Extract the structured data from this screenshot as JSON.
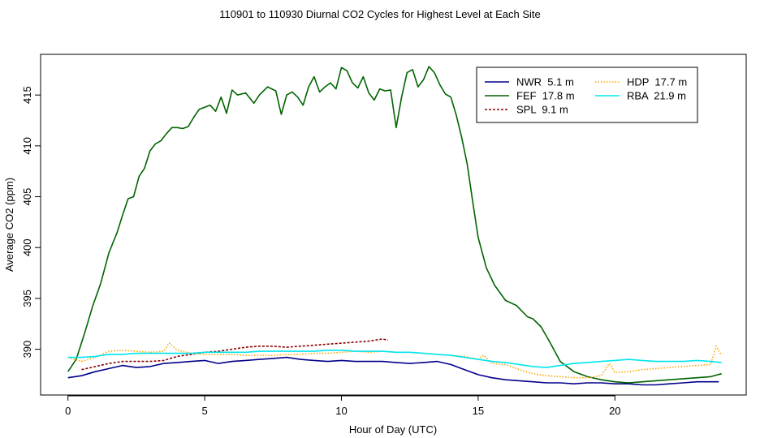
{
  "chart_data": {
    "type": "line",
    "title": "110901  to  110930 Diurnal CO2 Cycles for Highest Level at Each Site",
    "xlabel": "Hour of Day (UTC)",
    "ylabel": "Average CO2 (ppm)",
    "xlim": [
      -1,
      24.8
    ],
    "ylim": [
      385.5,
      419.0
    ],
    "xticks": [
      0,
      5,
      10,
      15,
      20
    ],
    "yticks": [
      390,
      395,
      400,
      405,
      410,
      415
    ],
    "legend_position": "top-right",
    "grid": false,
    "series": [
      {
        "name": "NWR  5.1 m",
        "color": "#00008b",
        "dash": "solid",
        "x": [
          0,
          0.5,
          1,
          1.5,
          2,
          2.5,
          3,
          3.5,
          4,
          4.5,
          5,
          5.5,
          6,
          6.5,
          7,
          7.5,
          8,
          8.5,
          9,
          9.5,
          10,
          10.5,
          11,
          11.5,
          12,
          12.5,
          13,
          13.5,
          14,
          14.5,
          15,
          15.5,
          16,
          16.5,
          17,
          17.5,
          18,
          18.5,
          19,
          19.5,
          20,
          20.5,
          21,
          21.5,
          22,
          22.5,
          23,
          23.5,
          23.8
        ],
        "y": [
          387.2,
          387.4,
          387.8,
          388.1,
          388.4,
          388.2,
          388.3,
          388.6,
          388.7,
          388.8,
          388.9,
          388.6,
          388.8,
          388.9,
          389.0,
          389.1,
          389.2,
          389.0,
          388.9,
          388.8,
          388.9,
          388.8,
          388.8,
          388.8,
          388.7,
          388.6,
          388.7,
          388.8,
          388.5,
          388.0,
          387.5,
          387.2,
          387.0,
          386.9,
          386.8,
          386.7,
          386.7,
          386.6,
          386.7,
          386.7,
          386.6,
          386.6,
          386.5,
          386.5,
          386.6,
          386.7,
          386.8,
          386.8,
          386.8
        ]
      },
      {
        "name": "FEF  17.8 m",
        "color": "#006400",
        "dash": "solid",
        "x": [
          0,
          0.3,
          0.6,
          0.9,
          1.2,
          1.5,
          1.8,
          2.0,
          2.2,
          2.4,
          2.6,
          2.8,
          3.0,
          3.2,
          3.4,
          3.6,
          3.8,
          4.0,
          4.2,
          4.4,
          4.6,
          4.8,
          5.0,
          5.2,
          5.4,
          5.6,
          5.8,
          6.0,
          6.2,
          6.5,
          6.8,
          7.0,
          7.3,
          7.6,
          7.8,
          8.0,
          8.2,
          8.4,
          8.6,
          8.8,
          9.0,
          9.2,
          9.4,
          9.6,
          9.8,
          10.0,
          10.2,
          10.4,
          10.6,
          10.8,
          11.0,
          11.2,
          11.4,
          11.6,
          11.8,
          12.0,
          12.2,
          12.4,
          12.6,
          12.8,
          13.0,
          13.2,
          13.4,
          13.6,
          13.8,
          14.0,
          14.2,
          14.4,
          14.6,
          14.8,
          15.0,
          15.3,
          15.6,
          16.0,
          16.4,
          16.8,
          17.0,
          17.3,
          17.6,
          18.0,
          18.5,
          19.0,
          19.5,
          20.0,
          20.5,
          21.0,
          21.5,
          22.0,
          22.5,
          23.0,
          23.5,
          23.9
        ],
        "y": [
          387.8,
          389.0,
          391.5,
          394.2,
          396.5,
          399.5,
          401.5,
          403.2,
          404.8,
          405.0,
          407.0,
          407.8,
          409.5,
          410.2,
          410.5,
          411.2,
          411.8,
          411.8,
          411.7,
          411.9,
          412.8,
          413.6,
          413.8,
          414.0,
          413.4,
          414.8,
          413.2,
          415.5,
          415.0,
          415.2,
          414.2,
          415.0,
          415.8,
          415.4,
          413.1,
          415.0,
          415.3,
          414.8,
          414.0,
          415.8,
          416.8,
          415.3,
          415.8,
          416.2,
          415.6,
          417.7,
          417.4,
          416.2,
          415.7,
          416.8,
          415.2,
          414.5,
          415.6,
          415.4,
          415.5,
          411.8,
          414.8,
          417.2,
          417.5,
          415.8,
          416.5,
          417.8,
          417.2,
          416.0,
          415.1,
          414.8,
          413.0,
          410.8,
          408.2,
          404.5,
          401.0,
          398.0,
          396.3,
          394.8,
          394.3,
          393.2,
          393.0,
          392.2,
          390.8,
          388.8,
          387.8,
          387.3,
          387.0,
          386.8,
          386.7,
          386.8,
          386.9,
          387.0,
          387.1,
          387.2,
          387.3,
          387.6
        ]
      },
      {
        "name": "SPL  9.1 m",
        "color": "#8b0000",
        "dash": "dashed",
        "x": [
          0.5,
          1.0,
          1.5,
          2.0,
          2.5,
          3.0,
          3.5,
          4.0,
          4.5,
          5.0,
          5.5,
          6.0,
          6.5,
          7.0,
          7.5,
          8.0,
          8.5,
          9.0,
          9.5,
          10.0,
          10.5,
          11.0,
          11.5,
          11.7
        ],
        "y": [
          388.0,
          388.3,
          388.6,
          388.8,
          388.8,
          388.8,
          388.9,
          389.3,
          389.5,
          389.7,
          389.8,
          390.0,
          390.2,
          390.3,
          390.3,
          390.2,
          390.3,
          390.4,
          390.5,
          390.6,
          390.7,
          390.8,
          391.0,
          390.9
        ]
      },
      {
        "name": "HDP  17.7 m",
        "color": "#ffa500",
        "dash": "dotted",
        "x": [
          0,
          0.5,
          1.0,
          1.5,
          2.0,
          2.5,
          3.0,
          3.5,
          3.7,
          4.0,
          4.5,
          5.0,
          5.5,
          6.0,
          6.5,
          7.0,
          7.5,
          8.0,
          8.5,
          9.0,
          9.5,
          10.0,
          10.5,
          11.0,
          11.5,
          12.0,
          12.5,
          13.0,
          13.5,
          14.0,
          14.5,
          15.0,
          15.2,
          15.5,
          16.0,
          16.5,
          17.0,
          17.5,
          18.0,
          18.5,
          19.0,
          19.5,
          19.8,
          20.0,
          20.5,
          21.0,
          21.5,
          22.0,
          22.5,
          23.0,
          23.5,
          23.7,
          23.9
        ],
        "y": [
          389.2,
          388.8,
          389.2,
          389.8,
          389.9,
          389.8,
          389.7,
          389.8,
          390.6,
          389.9,
          389.6,
          389.5,
          389.5,
          389.5,
          389.4,
          389.4,
          389.4,
          389.5,
          389.5,
          389.6,
          389.6,
          389.7,
          389.8,
          389.7,
          389.8,
          389.7,
          389.7,
          389.6,
          389.5,
          389.4,
          389.3,
          389.0,
          389.4,
          388.6,
          388.5,
          388.0,
          387.6,
          387.4,
          387.3,
          387.2,
          387.2,
          387.4,
          388.6,
          387.7,
          387.8,
          388.0,
          388.1,
          388.2,
          388.3,
          388.4,
          388.5,
          390.3,
          389.4
        ]
      },
      {
        "name": "RBA  21.9 m",
        "color": "#00e5ee",
        "dash": "solid",
        "x": [
          0,
          0.5,
          1.0,
          1.5,
          2.0,
          2.5,
          3.0,
          3.5,
          4.0,
          4.5,
          5.0,
          5.5,
          6.0,
          6.5,
          7.0,
          7.5,
          8.0,
          8.5,
          9.0,
          9.5,
          10.0,
          10.5,
          11.0,
          11.5,
          12.0,
          12.5,
          13.0,
          13.5,
          14.0,
          14.5,
          15.0,
          15.5,
          16.0,
          16.5,
          17.0,
          17.5,
          18.0,
          18.5,
          19.0,
          19.5,
          20.0,
          20.5,
          21.0,
          21.5,
          22.0,
          22.5,
          23.0,
          23.5,
          23.9
        ],
        "y": [
          389.2,
          389.2,
          389.3,
          389.5,
          389.5,
          389.6,
          389.6,
          389.6,
          389.6,
          389.6,
          389.7,
          389.7,
          389.7,
          389.7,
          389.8,
          389.8,
          389.8,
          389.8,
          389.8,
          389.9,
          389.9,
          389.8,
          389.8,
          389.8,
          389.7,
          389.7,
          389.6,
          389.5,
          389.4,
          389.2,
          389.0,
          388.8,
          388.7,
          388.5,
          388.3,
          388.2,
          388.4,
          388.6,
          388.7,
          388.8,
          388.9,
          389.0,
          388.9,
          388.8,
          388.8,
          388.8,
          388.9,
          388.8,
          388.7
        ]
      }
    ]
  }
}
